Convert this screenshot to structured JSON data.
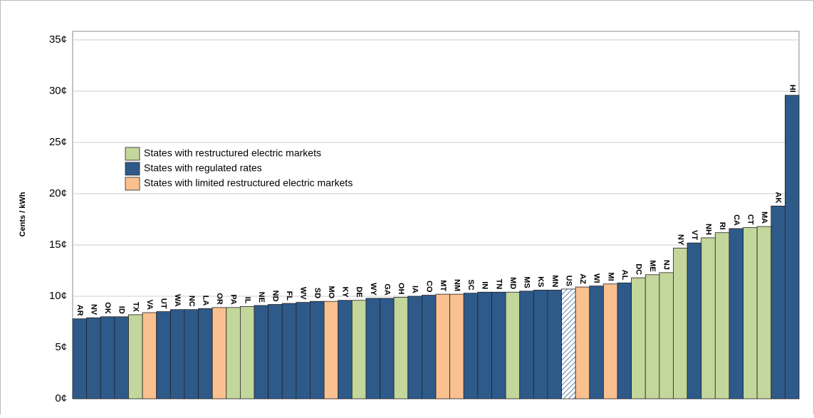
{
  "chart_data": {
    "type": "bar",
    "y_label": "Cents / kWh",
    "categories": [
      "AR",
      "NV",
      "OK",
      "ID",
      "TX",
      "VA",
      "UT",
      "WA",
      "NC",
      "LA",
      "OR",
      "PA",
      "IL",
      "NE",
      "ND",
      "FL",
      "WV",
      "SD",
      "MO",
      "KY",
      "DE",
      "WY",
      "GA",
      "OH",
      "IA",
      "CO",
      "MT",
      "NM",
      "SC",
      "IN",
      "TN",
      "MD",
      "MS",
      "KS",
      "MN",
      "US",
      "AZ",
      "WI",
      "MI",
      "AL",
      "DC",
      "ME",
      "NJ",
      "NY",
      "VT",
      "NH",
      "RI",
      "CA",
      "CT",
      "MA",
      "AK",
      "HI"
    ],
    "values": [
      7.8,
      7.9,
      8.0,
      8.0,
      8.2,
      8.4,
      8.5,
      8.7,
      8.7,
      8.8,
      8.9,
      8.9,
      9.0,
      9.1,
      9.2,
      9.3,
      9.4,
      9.5,
      9.5,
      9.6,
      9.6,
      9.8,
      9.8,
      9.9,
      10.0,
      10.1,
      10.2,
      10.2,
      10.3,
      10.4,
      10.4,
      10.4,
      10.5,
      10.6,
      10.6,
      10.7,
      10.9,
      11.0,
      11.2,
      11.3,
      11.8,
      12.1,
      12.3,
      14.7,
      15.2,
      15.7,
      16.2,
      16.6,
      16.7,
      16.8,
      18.8,
      29.6
    ],
    "colors": [
      "#2e5a8a",
      "#2e5a8a",
      "#2e5a8a",
      "#2e5a8a",
      "#c3d69b",
      "#fac090",
      "#2e5a8a",
      "#2e5a8a",
      "#2e5a8a",
      "#2e5a8a",
      "#fac090",
      "#c3d69b",
      "#c3d69b",
      "#2e5a8a",
      "#2e5a8a",
      "#2e5a8a",
      "#2e5a8a",
      "#2e5a8a",
      "#fac090",
      "#2e5a8a",
      "#c3d69b",
      "#2e5a8a",
      "#2e5a8a",
      "#c3d69b",
      "#2e5a8a",
      "#2e5a8a",
      "#fac090",
      "#fac090",
      "#2e5a8a",
      "#2e5a8a",
      "#2e5a8a",
      "#c3d69b",
      "#2e5a8a",
      "#2e5a8a",
      "#2e5a8a",
      "hatch",
      "#fac090",
      "#2e5a8a",
      "#fac090",
      "#2e5a8a",
      "#c3d69b",
      "#c3d69b",
      "#c3d69b",
      "#c3d69b",
      "#2e5a8a",
      "#c3d69b",
      "#c3d69b",
      "#2e5a8a",
      "#c3d69b",
      "#c3d69b",
      "#2e5a8a",
      "#2e5a8a"
    ],
    "legend": [
      {
        "name": "States with restructured electric markets",
        "color": "#c3d69b"
      },
      {
        "name": "States with regulated rates",
        "color": "#2e5a8a"
      },
      {
        "name": "States with limited restructured electric markets",
        "color": "#fac090"
      }
    ],
    "ylim": [
      0,
      35
    ],
    "yticks": [
      {
        "value": 0,
        "label": "0¢"
      },
      {
        "value": 5,
        "label": "5¢"
      },
      {
        "value": 10,
        "label": "10¢"
      },
      {
        "value": 15,
        "label": "15¢"
      },
      {
        "value": 20,
        "label": "20¢"
      },
      {
        "value": 25,
        "label": "25¢"
      },
      {
        "value": 30,
        "label": "30¢"
      },
      {
        "value": 35,
        "label": "35¢"
      }
    ],
    "grid": true
  }
}
